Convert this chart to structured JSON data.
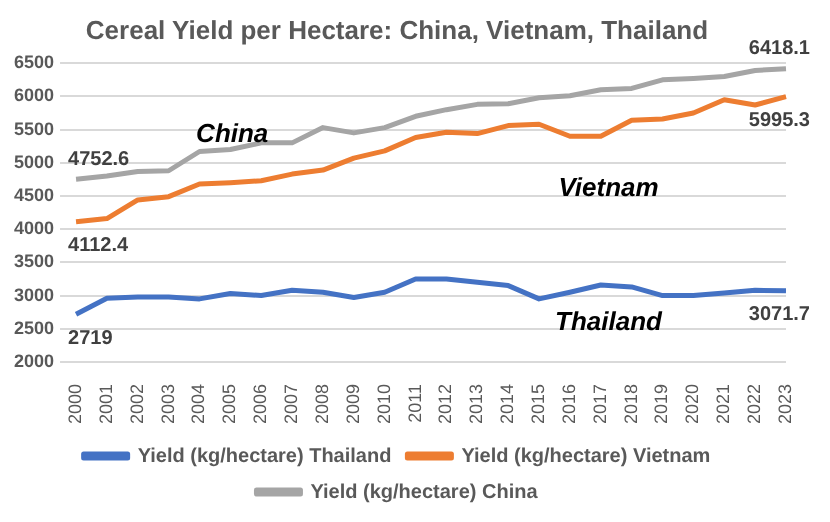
{
  "chart_data": {
    "type": "line",
    "title": "Cereal Yield per Hectare: China, Vietnam, Thailand",
    "categories": [
      "2000",
      "2001",
      "2002",
      "2003",
      "2004",
      "2005",
      "2006",
      "2007",
      "2008",
      "2009",
      "2010",
      "2011",
      "2012",
      "2013",
      "2014",
      "2015",
      "2016",
      "2017",
      "2018",
      "2019",
      "2020",
      "2021",
      "2022",
      "2023"
    ],
    "series": [
      {
        "name": "Yield (kg/hectare) Thailand",
        "color": "#4472c4",
        "values": [
          2719,
          2960,
          2980,
          2980,
          2950,
          3030,
          3000,
          3080,
          3050,
          2970,
          3050,
          3250,
          3250,
          3200,
          3150,
          2950,
          3050,
          3160,
          3130,
          3000,
          3000,
          3040,
          3080,
          3071.7
        ],
        "value_labels": [
          "2719",
          null,
          null,
          null,
          null,
          null,
          null,
          null,
          null,
          null,
          null,
          null,
          null,
          null,
          null,
          null,
          null,
          null,
          null,
          null,
          null,
          null,
          null,
          "3071.7"
        ]
      },
      {
        "name": "Yield (kg/hectare) Vietnam",
        "color": "#ed7d31",
        "values": [
          4112.4,
          4160,
          4440,
          4490,
          4680,
          4700,
          4730,
          4830,
          4890,
          5070,
          5180,
          5380,
          5460,
          5440,
          5560,
          5580,
          5400,
          5400,
          5640,
          5660,
          5750,
          5950,
          5870,
          5995.3
        ],
        "value_labels": [
          "4112.4",
          null,
          null,
          null,
          null,
          null,
          null,
          null,
          null,
          null,
          null,
          null,
          null,
          null,
          null,
          null,
          null,
          null,
          null,
          null,
          null,
          null,
          null,
          "5995.3"
        ]
      },
      {
        "name": "Yield (kg/hectare) China",
        "color": "#a5a5a5",
        "values": [
          4752.6,
          4800,
          4870,
          4880,
          5170,
          5200,
          5300,
          5300,
          5530,
          5450,
          5530,
          5700,
          5800,
          5880,
          5890,
          5980,
          6010,
          6100,
          6120,
          6250,
          6270,
          6300,
          6390,
          6418.1
        ],
        "value_labels": [
          "4752.6",
          null,
          null,
          null,
          null,
          null,
          null,
          null,
          null,
          null,
          null,
          null,
          null,
          null,
          null,
          null,
          null,
          null,
          null,
          null,
          null,
          null,
          null,
          "6418.1"
        ]
      }
    ],
    "ylim": [
      2000,
      6500
    ],
    "yticks": [
      2000,
      2500,
      3000,
      3500,
      4000,
      4500,
      5000,
      5500,
      6000,
      6500
    ],
    "grid": "y",
    "legend": "bottom",
    "marker": "none",
    "line_style": "solid",
    "annotations": [
      "China",
      "Vietnam",
      "Thailand"
    ]
  }
}
